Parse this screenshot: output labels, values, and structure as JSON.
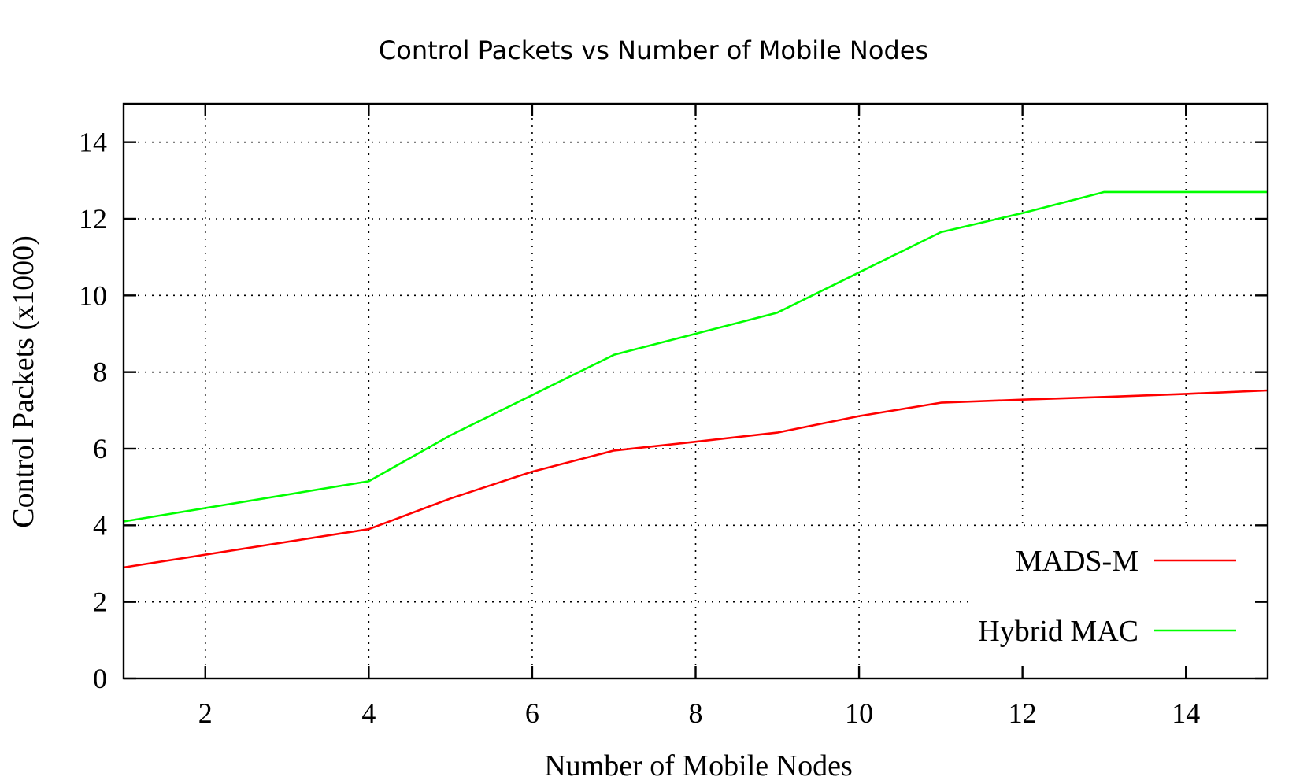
{
  "chart_data": {
    "type": "line",
    "title": "Control Packets vs Number of Mobile Nodes",
    "xlabel": "Number of Mobile Nodes",
    "ylabel": "Control Packets (x1000)",
    "xlim": [
      1,
      15
    ],
    "ylim": [
      0,
      15
    ],
    "xticks": [
      2,
      4,
      6,
      8,
      10,
      12,
      14
    ],
    "yticks": [
      0,
      2,
      4,
      6,
      8,
      10,
      12,
      14
    ],
    "grid": true,
    "legend": "bottom-right",
    "series": [
      {
        "name": "MADS-M",
        "color": "#ff0000",
        "x": [
          1,
          4,
          5,
          6,
          7,
          8,
          9,
          10,
          11,
          12,
          13,
          14,
          15
        ],
        "y": [
          2.9,
          3.9,
          4.7,
          5.4,
          5.95,
          6.18,
          6.42,
          6.85,
          7.2,
          7.28,
          7.35,
          7.43,
          7.52
        ]
      },
      {
        "name": "Hybrid MAC",
        "color": "#00ff00",
        "x": [
          1,
          4,
          5,
          6,
          7,
          8,
          9,
          10,
          11,
          12,
          13,
          14,
          15
        ],
        "y": [
          4.1,
          5.15,
          6.35,
          7.4,
          8.45,
          9.0,
          9.55,
          10.6,
          11.65,
          12.15,
          12.7,
          12.7,
          12.7
        ]
      }
    ]
  }
}
